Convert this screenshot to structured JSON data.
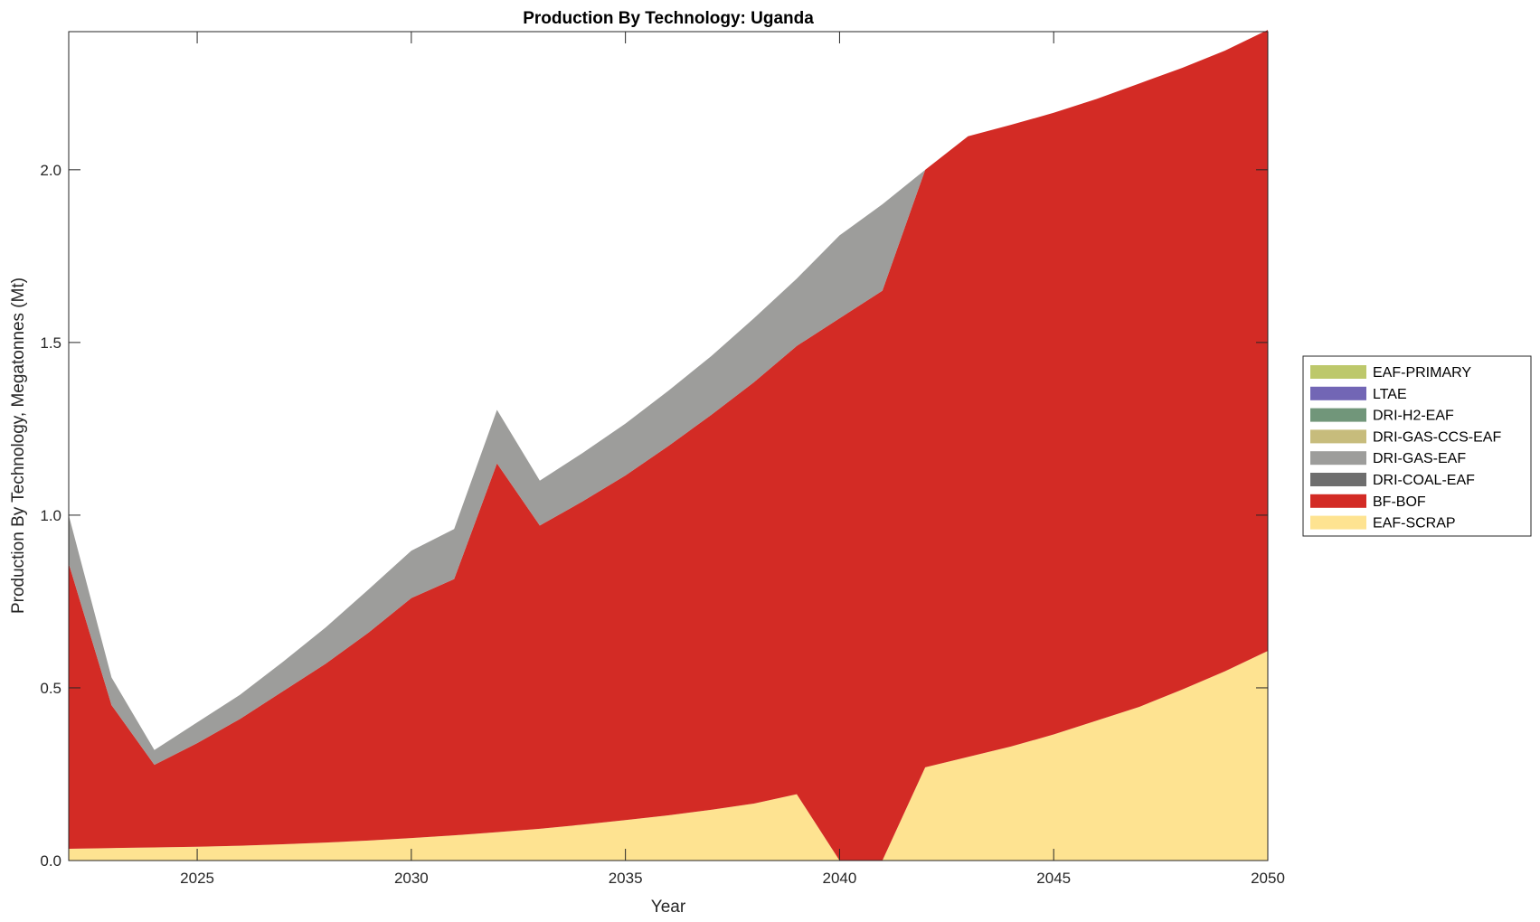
{
  "chart_data": {
    "type": "area",
    "title": "Production By Technology: Uganda",
    "xlabel": "Year",
    "ylabel": "Production By Technology, Megatonnes (Mt)",
    "xlim": [
      2022,
      2050
    ],
    "ylim": [
      0,
      2.4
    ],
    "xticks": [
      "2025",
      "2030",
      "2035",
      "2040",
      "2045",
      "2050"
    ],
    "yticks": [
      "0.0",
      "0.5",
      "1.0",
      "1.5",
      "2.0"
    ],
    "legend_position": "right",
    "x": [
      2022,
      2023,
      2024,
      2025,
      2026,
      2027,
      2028,
      2029,
      2030,
      2031,
      2032,
      2033,
      2034,
      2035,
      2036,
      2037,
      2038,
      2039,
      2040,
      2041,
      2042,
      2043,
      2044,
      2045,
      2046,
      2047,
      2048,
      2049,
      2050
    ],
    "series": [
      {
        "name": "EAF-SCRAP",
        "color": "#FEE391",
        "values": [
          0.034,
          0.036,
          0.038,
          0.04,
          0.043,
          0.047,
          0.052,
          0.058,
          0.065,
          0.073,
          0.082,
          0.092,
          0.104,
          0.117,
          0.131,
          0.147,
          0.165,
          0.192,
          0,
          0,
          0.27,
          0.3,
          0.33,
          0.365,
          0.405,
          0.445,
          0.495,
          0.548,
          0.607
        ]
      },
      {
        "name": "BF-BOF",
        "color": "#D32B25",
        "values": [
          0.826,
          0.414,
          0.239,
          0.3,
          0.367,
          0.443,
          0.518,
          0.602,
          0.695,
          0.742,
          1.068,
          0.878,
          0.936,
          0.998,
          1.069,
          1.143,
          1.22,
          1.298,
          1.57,
          1.65,
          1.73,
          1.797,
          1.8,
          1.8,
          1.8,
          1.805,
          1.8,
          1.797,
          1.798
        ]
      },
      {
        "name": "DRI-COAL-EAF",
        "color": "#6E6E6E",
        "values": [
          0,
          0,
          0,
          0,
          0,
          0,
          0,
          0,
          0,
          0,
          0,
          0,
          0,
          0,
          0,
          0,
          0,
          0,
          0,
          0,
          0,
          0,
          0,
          0,
          0,
          0,
          0,
          0,
          0
        ]
      },
      {
        "name": "DRI-GAS-EAF",
        "color": "#9D9D9B",
        "values": [
          0.14,
          0.08,
          0.043,
          0.06,
          0.07,
          0.085,
          0.105,
          0.125,
          0.137,
          0.145,
          0.155,
          0.13,
          0.14,
          0.15,
          0.16,
          0.17,
          0.185,
          0.195,
          0.24,
          0.25,
          0,
          0,
          0,
          0,
          0,
          0,
          0,
          0,
          0
        ]
      },
      {
        "name": "DRI-GAS-CCS-EAF",
        "color": "#C7BC7C",
        "values": [
          0,
          0,
          0,
          0,
          0,
          0,
          0,
          0,
          0,
          0,
          0,
          0,
          0,
          0,
          0,
          0,
          0,
          0,
          0,
          0,
          0,
          0,
          0,
          0,
          0,
          0,
          0,
          0,
          0
        ]
      },
      {
        "name": "DRI-H2-EAF",
        "color": "#71967A",
        "values": [
          0,
          0,
          0,
          0,
          0,
          0,
          0,
          0,
          0,
          0,
          0,
          0,
          0,
          0,
          0,
          0,
          0,
          0,
          0,
          0,
          0,
          0,
          0,
          0,
          0,
          0,
          0,
          0,
          0
        ]
      },
      {
        "name": "LTAE",
        "color": "#7266B5",
        "values": [
          0,
          0,
          0,
          0,
          0,
          0,
          0,
          0,
          0,
          0,
          0,
          0,
          0,
          0,
          0,
          0,
          0,
          0,
          0,
          0,
          0,
          0,
          0,
          0,
          0,
          0,
          0,
          0,
          0
        ]
      },
      {
        "name": "EAF-PRIMARY",
        "color": "#BDC86B",
        "values": [
          0,
          0,
          0,
          0,
          0,
          0,
          0,
          0,
          0,
          0,
          0,
          0,
          0,
          0,
          0,
          0,
          0,
          0,
          0,
          0,
          0,
          0,
          0,
          0,
          0,
          0,
          0,
          0,
          0
        ]
      }
    ]
  }
}
